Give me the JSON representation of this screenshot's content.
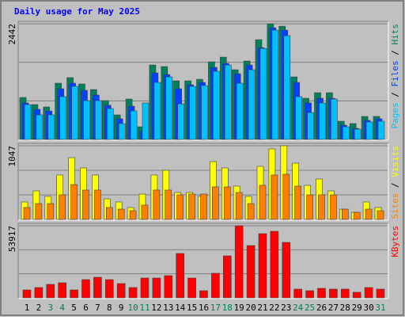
{
  "chart_data": [
    {
      "type": "bar",
      "title": "Daily usage for May 2025",
      "ylim": [
        0,
        2442
      ],
      "yticks": [
        2442
      ],
      "series": [
        {
          "name": "Hits",
          "color": "#00805c",
          "values": [
            886,
            735,
            685,
            1187,
            1304,
            1170,
            1053,
            819,
            518,
            852,
            267,
            1571,
            1538,
            1237,
            1237,
            1270,
            1638,
            1738,
            1471,
            1655,
            2106,
            2442,
            2390,
            1320,
            869,
            986,
            986,
            384,
            334,
            485,
            485
          ]
        },
        {
          "name": "Files",
          "color": "#0040ff",
          "values": [
            770,
            635,
            600,
            1070,
            1187,
            1036,
            936,
            720,
            435,
            702,
            184,
            1404,
            1370,
            1070,
            1153,
            1203,
            1521,
            1605,
            1387,
            1571,
            1939,
            2357,
            2307,
            1203,
            770,
            869,
            869,
            301,
            234,
            401,
            435
          ]
        },
        {
          "name": "Pages",
          "color": "#00c0ff",
          "values": [
            735,
            518,
            518,
            903,
            1120,
            819,
            819,
            652,
            334,
            602,
            769,
            1203,
            1320,
            752,
            1120,
            1137,
            1438,
            1571,
            1187,
            1471,
            1922,
            2307,
            2190,
            903,
            568,
            769,
            852,
            267,
            217,
            368,
            385
          ]
        }
      ]
    },
    {
      "type": "bar",
      "ylim": [
        0,
        1047
      ],
      "yticks": [
        1047
      ],
      "series": [
        {
          "name": "Visits",
          "color": "#ffff00",
          "values": [
            248,
            405,
            327,
            631,
            878,
            732,
            631,
            293,
            248,
            169,
            360,
            631,
            698,
            383,
            383,
            327,
            822,
            732,
            473,
            327,
            754,
            1002,
            1047,
            800,
            484,
            574,
            405,
            146,
            101,
            248,
            169
          ]
        },
        {
          "name": "Sites",
          "color": "#ff8000",
          "values": [
            169,
            225,
            225,
            349,
            495,
            417,
            417,
            169,
            146,
            124,
            203,
            417,
            417,
            349,
            360,
            360,
            462,
            462,
            383,
            225,
            484,
            631,
            642,
            473,
            349,
            349,
            349,
            146,
            101,
            146,
            124
          ]
        }
      ]
    },
    {
      "type": "bar",
      "ylim": [
        0,
        53917
      ],
      "yticks": [
        53917
      ],
      "categories": [
        "1",
        "2",
        "3",
        "4",
        "5",
        "6",
        "7",
        "8",
        "9",
        "10",
        "11",
        "12",
        "13",
        "14",
        "15",
        "16",
        "17",
        "18",
        "19",
        "20",
        "21",
        "22",
        "23",
        "24",
        "25",
        "26",
        "27",
        "28",
        "29",
        "30",
        "31"
      ],
      "category_colors": [
        "#000000",
        "#000000",
        "#00805c",
        "#00805c",
        "#000000",
        "#000000",
        "#000000",
        "#000000",
        "#000000",
        "#00805c",
        "#00805c",
        "#000000",
        "#000000",
        "#000000",
        "#000000",
        "#000000",
        "#00805c",
        "#00805c",
        "#000000",
        "#000000",
        "#000000",
        "#000000",
        "#000000",
        "#00805c",
        "#00805c",
        "#000000",
        "#000000",
        "#000000",
        "#000000",
        "#000000",
        "#00805c"
      ],
      "series": [
        {
          "name": "KBytes",
          "color": "#ff0000",
          "values": [
            5925,
            7700,
            10070,
            11260,
            5925,
            13630,
            15400,
            13630,
            10660,
            7700,
            14810,
            14810,
            16590,
            33180,
            14810,
            5330,
            18370,
            31400,
            53917,
            39100,
            47990,
            49770,
            41470,
            6520,
            5330,
            7110,
            6520,
            6520,
            4150,
            7700,
            6520
          ]
        }
      ]
    }
  ]
}
